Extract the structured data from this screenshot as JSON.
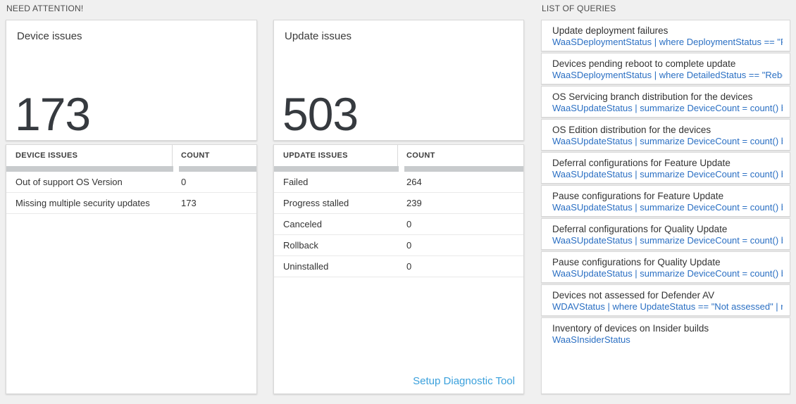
{
  "sections": {
    "need_attention_label": "NEED ATTENTION!",
    "queries_label": "LIST OF QUERIES"
  },
  "device_card": {
    "title": "Device issues",
    "count": "173",
    "table": {
      "headers": [
        "DEVICE ISSUES",
        "COUNT"
      ],
      "rows": [
        {
          "label": "Out of support OS Version",
          "count": "0"
        },
        {
          "label": "Missing multiple security updates",
          "count": "173"
        }
      ]
    }
  },
  "update_card": {
    "title": "Update issues",
    "count": "503",
    "table": {
      "headers": [
        "UPDATE ISSUES",
        "COUNT"
      ],
      "rows": [
        {
          "label": "Failed",
          "count": "264"
        },
        {
          "label": "Progress stalled",
          "count": "239"
        },
        {
          "label": "Canceled",
          "count": "0"
        },
        {
          "label": "Rollback",
          "count": "0"
        },
        {
          "label": "Uninstalled",
          "count": "0"
        }
      ]
    },
    "link_label": "Setup Diagnostic Tool"
  },
  "queries": [
    {
      "title": "Update deployment failures",
      "query": "WaaSDeploymentStatus | where DeploymentStatus == \"Failed\" |..."
    },
    {
      "title": "Devices pending reboot to complete update",
      "query": "WaaSDeploymentStatus | where DetailedStatus == \"Reboot pend..."
    },
    {
      "title": "OS Servicing branch distribution for the devices",
      "query": "WaaSUpdateStatus | summarize DeviceCount = count() by OSSer..."
    },
    {
      "title": "OS Edition distribution for the devices",
      "query": "WaaSUpdateStatus | summarize DeviceCount = count() by OSEdit..."
    },
    {
      "title": "Deferral configurations for Feature Update",
      "query": "WaaSUpdateStatus | summarize DeviceCount = count() by Featur..."
    },
    {
      "title": "Pause configurations for Feature Update",
      "query": "WaaSUpdateStatus | summarize DeviceCount = count() by Featur..."
    },
    {
      "title": "Deferral configurations for Quality Update",
      "query": "WaaSUpdateStatus | summarize DeviceCount = count() by Qualit..."
    },
    {
      "title": "Pause configurations for Quality Update",
      "query": "WaaSUpdateStatus | summarize DeviceCount = count() by Qualit..."
    },
    {
      "title": "Devices not assessed for Defender AV",
      "query": "WDAVStatus | where UpdateStatus == \"Not assessed\" | render ta..."
    },
    {
      "title": "Inventory of devices on Insider builds",
      "query": "WaaSInsiderStatus"
    }
  ],
  "colors": {
    "query_link_blue": "#2a6fc3",
    "action_link_blue": "#3aa0dc",
    "big_number_color": "#363a3f",
    "header_bar_gray": "#c8cbcd",
    "page_background": "#f0f0f0"
  }
}
